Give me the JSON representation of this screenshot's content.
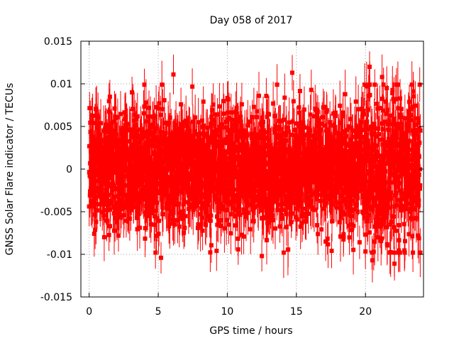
{
  "chart_data": {
    "type": "scatter",
    "title": "Day 058 of 2017",
    "xlabel": "GPS time / hours",
    "ylabel": "GNSS Solar Flare indicator / TECUs",
    "xlim": [
      -0.6,
      24.2
    ],
    "ylim": [
      -0.015,
      0.015
    ],
    "xticks": [
      0,
      5,
      10,
      15,
      20
    ],
    "xtick_labels": [
      "0",
      "5",
      "10",
      "15",
      "20"
    ],
    "yticks": [
      -0.015,
      -0.01,
      -0.005,
      0,
      0.005,
      0.01,
      0.015
    ],
    "ytick_labels": [
      "-0.015",
      "-0.01",
      "-0.005",
      "0",
      "0.005",
      "0.01",
      "0.015"
    ],
    "grid": true,
    "series_color": "#ff0000",
    "marker": "square",
    "error_bars": true,
    "sampling": "approximately every 30 s from 0 h to 23.97 h",
    "notable_points": [
      {
        "x": 6.1,
        "y": 0.0111
      },
      {
        "x": 14.7,
        "y": 0.0113
      },
      {
        "x": 20.3,
        "y": 0.012
      },
      {
        "x": 5.2,
        "y": -0.0104
      },
      {
        "x": 12.5,
        "y": -0.0102
      },
      {
        "x": 20.5,
        "y": -0.0107
      },
      {
        "x": 22.1,
        "y": -0.0111
      },
      {
        "x": 3.1,
        "y": 0.009
      },
      {
        "x": 21.2,
        "y": 0.0108
      }
    ]
  }
}
